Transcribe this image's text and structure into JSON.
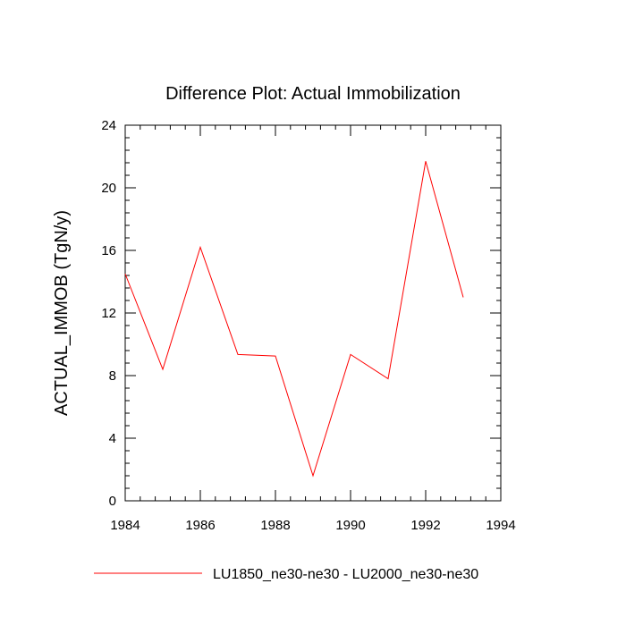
{
  "chart_data": {
    "type": "line",
    "title": "Difference Plot: Actual Immobilization",
    "xlabel": "",
    "ylabel": "ACTUAL_IMMOB  (TgN/y)",
    "xlim": [
      1984,
      1994
    ],
    "ylim": [
      0,
      24
    ],
    "x_ticks": [
      1984,
      1986,
      1988,
      1990,
      1992,
      1994
    ],
    "x_tick_labels": [
      "1984",
      "1986",
      "1988",
      "1990",
      "1992",
      "1994"
    ],
    "y_ticks": [
      0,
      4,
      8,
      12,
      16,
      20,
      24
    ],
    "y_tick_labels": [
      "0",
      "4",
      "8",
      "12",
      "16",
      "20",
      "24"
    ],
    "grid": false,
    "legend_position": "bottom",
    "series": [
      {
        "name": "LU1850_ne30-ne30 - LU2000_ne30-ne30",
        "color": "#ff0000",
        "x": [
          1984,
          1985,
          1986,
          1987,
          1988,
          1989,
          1990,
          1991,
          1992,
          1993
        ],
        "values": [
          14.5,
          8.4,
          16.2,
          9.35,
          9.25,
          1.6,
          9.35,
          7.8,
          21.7,
          13.0
        ]
      }
    ]
  }
}
